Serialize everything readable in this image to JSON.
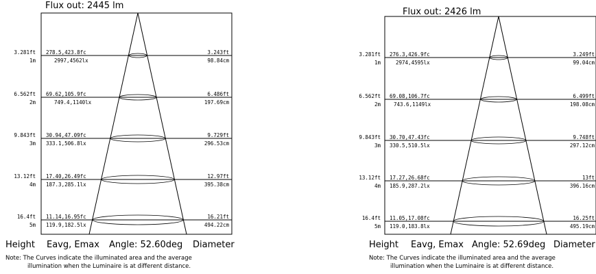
{
  "diagrams": [
    {
      "flux": "Flux out: 2445 lm",
      "angle_label": "Angle: 52.60deg",
      "rows": [
        {
          "height_ft": "3.281ft",
          "height_m": "1m",
          "eavg_emax_fc": "278.5,423.8fc",
          "eavg_emax_lx": "2997,4562lx",
          "diam_ft": "3.243ft",
          "diam_cm": "98.84cm"
        },
        {
          "height_ft": "6.562ft",
          "height_m": "2m",
          "eavg_emax_fc": "69.62,105.9fc",
          "eavg_emax_lx": "749.4,1140lx",
          "diam_ft": "6.486ft",
          "diam_cm": "197.69cm"
        },
        {
          "height_ft": "9.843ft",
          "height_m": "3m",
          "eavg_emax_fc": "30.94,47.09fc",
          "eavg_emax_lx": "333.1,506.8lx",
          "diam_ft": "9.729ft",
          "diam_cm": "296.53cm"
        },
        {
          "height_ft": "13.12ft",
          "height_m": "4m",
          "eavg_emax_fc": "17.40,26.49fc",
          "eavg_emax_lx": "187.3,285.1lx",
          "diam_ft": "12.97ft",
          "diam_cm": "395.38cm"
        },
        {
          "height_ft": "16.4ft",
          "height_m": "5m",
          "eavg_emax_fc": "11.14,16.95fc",
          "eavg_emax_lx": "119.9,182.5lx",
          "diam_ft": "16.21ft",
          "diam_cm": "494.22cm"
        }
      ]
    },
    {
      "flux": "Flux out: 2426 lm",
      "angle_label": "Angle: 52.69deg",
      "rows": [
        {
          "height_ft": "3.281ft",
          "height_m": "1m",
          "eavg_emax_fc": "276.3,426.9fc",
          "eavg_emax_lx": "2974,4595lx",
          "diam_ft": "3.249ft",
          "diam_cm": "99.04cm"
        },
        {
          "height_ft": "6.562ft",
          "height_m": "2m",
          "eavg_emax_fc": "69.08,106.7fc",
          "eavg_emax_lx": "743.6,1149lx",
          "diam_ft": "6.499ft",
          "diam_cm": "198.08cm"
        },
        {
          "height_ft": "9.843ft",
          "height_m": "3m",
          "eavg_emax_fc": "30.70,47.43fc",
          "eavg_emax_lx": "330.5,510.5lx",
          "diam_ft": "9.748ft",
          "diam_cm": "297.12cm"
        },
        {
          "height_ft": "13.12ft",
          "height_m": "4m",
          "eavg_emax_fc": "17.27,26.68fc",
          "eavg_emax_lx": "185.9,287.2lx",
          "diam_ft": "13ft",
          "diam_cm": "396.16cm"
        },
        {
          "height_ft": "16.4ft",
          "height_m": "5m",
          "eavg_emax_fc": "11.05,17.08fc",
          "eavg_emax_lx": "119.0,183.8lx",
          "diam_ft": "16.25ft",
          "diam_cm": "495.19cm"
        }
      ]
    }
  ],
  "footer": {
    "height": "Height",
    "eavg_emax": "Eavg, Emax",
    "diameter": "Diameter"
  },
  "note": {
    "line1": "Note: The Curves indicate the illuminated area and the average",
    "line2": "illumination when the Luminaire is at different distance."
  }
}
